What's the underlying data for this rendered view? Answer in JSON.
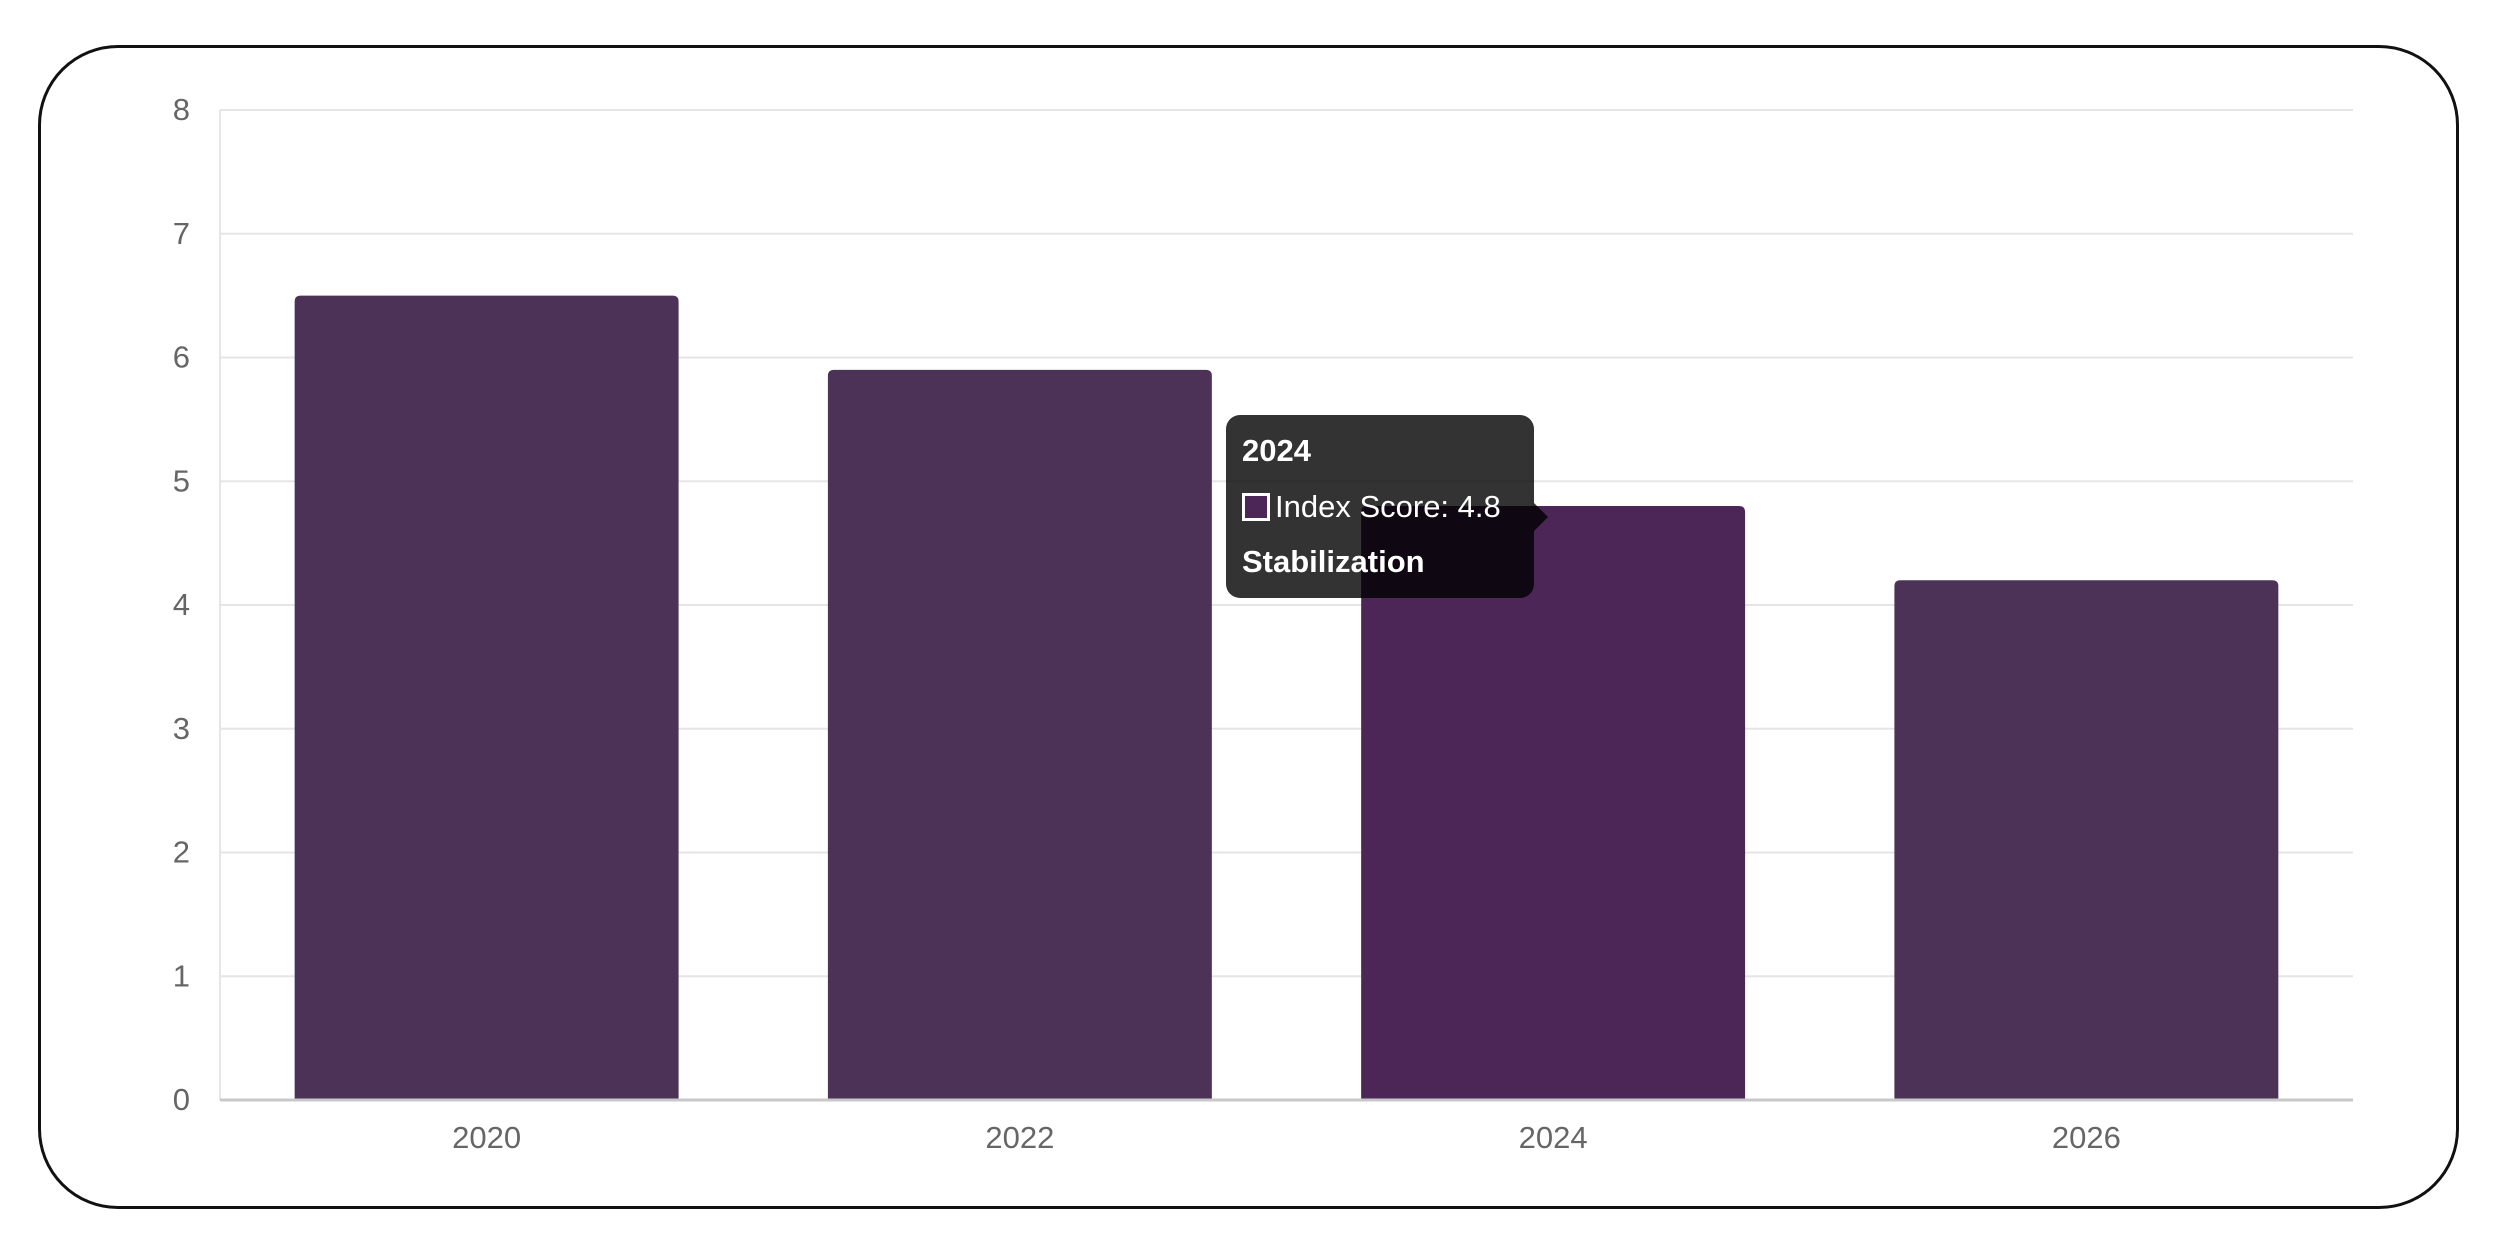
{
  "chart_data": {
    "type": "bar",
    "categories": [
      "2020",
      "2022",
      "2024",
      "2026"
    ],
    "series": [
      {
        "name": "Index Score",
        "values": [
          6.5,
          5.9,
          4.8,
          4.2
        ]
      }
    ],
    "ylim": [
      0,
      8
    ],
    "yticks": [
      0,
      1,
      2,
      3,
      4,
      5,
      6,
      7,
      8
    ],
    "grid": true,
    "legend": "none",
    "colors": {
      "bar": "#4b3256",
      "bar_hover": "#4b2657",
      "grid": "#e5e5e5",
      "axis": "#c8c8c8"
    }
  },
  "tooltip": {
    "title": "2024",
    "label": "Index Score: 4.8",
    "footer": "Stabilization"
  }
}
